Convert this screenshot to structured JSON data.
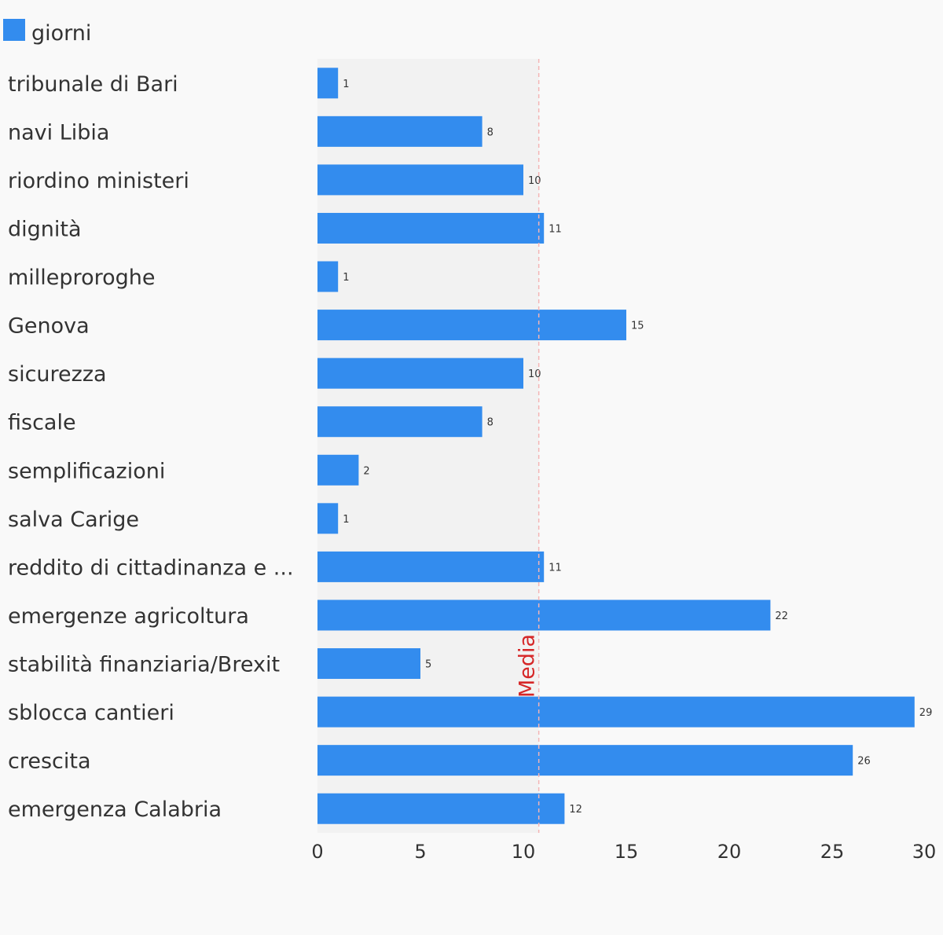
{
  "legend": {
    "label": "giorni",
    "color": "#338cee"
  },
  "chart_data": {
    "type": "bar",
    "orientation": "horizontal",
    "categories": [
      "tribunale di Bari",
      "navi Libia",
      "riordino ministeri",
      "dignità",
      "milleproroghe",
      "Genova",
      "sicurezza",
      "fiscale",
      "semplificazioni",
      "salva Carige",
      "reddito di cittadinanza e ...",
      "emergenze agricoltura",
      "stabilità finanziaria/Brexit",
      "sblocca cantieri",
      "crescita",
      "emergenza Calabria"
    ],
    "series": [
      {
        "name": "giorni",
        "values": [
          1,
          8,
          10,
          11,
          1,
          15,
          10,
          8,
          2,
          1,
          11,
          22,
          5,
          29,
          26,
          12
        ]
      }
    ],
    "xlim": [
      0,
      30
    ],
    "xticks": [
      0,
      5,
      10,
      15,
      20,
      25,
      30
    ],
    "reference_line": {
      "label": "Media",
      "value": 10.75,
      "color": "#d62728"
    },
    "legend_position": "top-left",
    "grid": false,
    "bar_color": "#338cee"
  }
}
